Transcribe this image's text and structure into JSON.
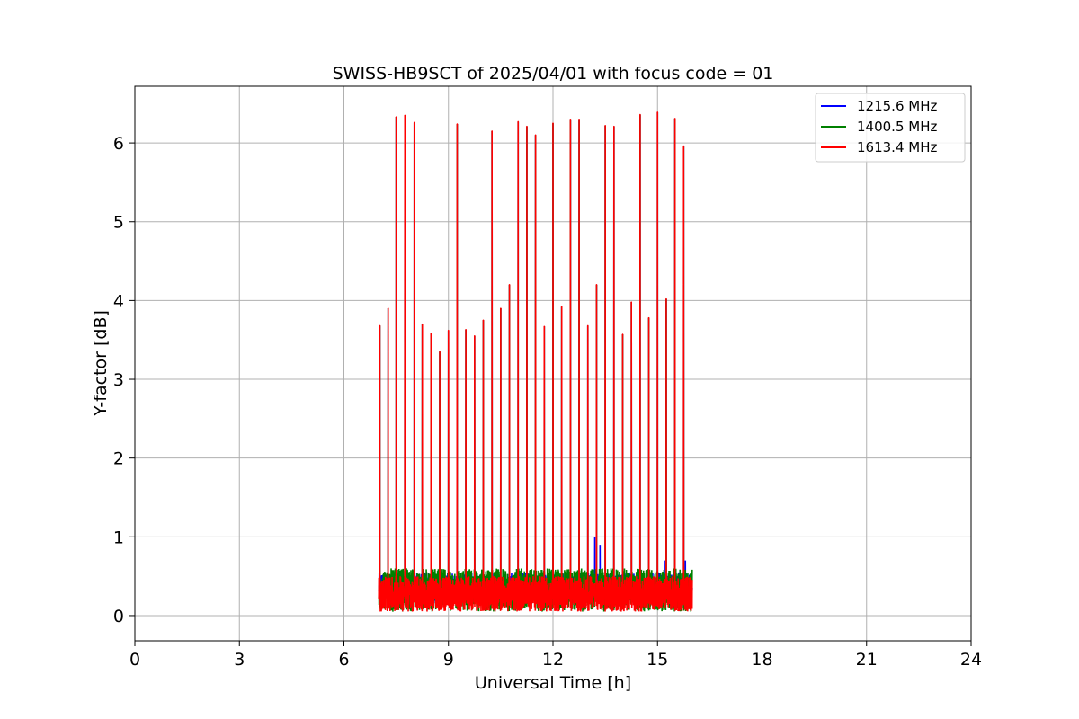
{
  "chart_data": {
    "type": "line",
    "title": "SWISS-HB9SCT of 2025/04/01 with focus code = 01",
    "xlabel": "Universal Time [h]",
    "ylabel": "Y-factor [dB]",
    "xlim": [
      0,
      24
    ],
    "ylim": [
      -0.32,
      6.72
    ],
    "xticks": [
      0,
      3,
      6,
      9,
      12,
      15,
      18,
      21,
      24
    ],
    "yticks": [
      0,
      1,
      2,
      3,
      4,
      5,
      6
    ],
    "grid": true,
    "legend_position": "top-right",
    "data_range_x": [
      7.0,
      16.0
    ],
    "baseline": {
      "blue": [
        0.15,
        0.55
      ],
      "green": [
        0.05,
        0.6
      ],
      "red": [
        0.05,
        0.5
      ]
    },
    "series": [
      {
        "name": "1215.6 MHz",
        "color": "#0000ff"
      },
      {
        "name": "1400.5 MHz",
        "color": "#008000"
      },
      {
        "name": "1613.4 MHz",
        "color": "#ff0000"
      }
    ],
    "peaks": [
      {
        "x": 7.03,
        "y": 3.68
      },
      {
        "x": 7.27,
        "y": 3.9
      },
      {
        "x": 7.5,
        "y": 6.33
      },
      {
        "x": 7.75,
        "y": 6.35
      },
      {
        "x": 8.02,
        "y": 6.26
      },
      {
        "x": 8.25,
        "y": 3.7
      },
      {
        "x": 8.5,
        "y": 3.58
      },
      {
        "x": 8.75,
        "y": 3.35
      },
      {
        "x": 9.0,
        "y": 3.62
      },
      {
        "x": 9.25,
        "y": 6.24
      },
      {
        "x": 9.5,
        "y": 3.63
      },
      {
        "x": 9.75,
        "y": 3.55
      },
      {
        "x": 10.0,
        "y": 3.75
      },
      {
        "x": 10.25,
        "y": 6.15
      },
      {
        "x": 10.5,
        "y": 3.9
      },
      {
        "x": 10.75,
        "y": 4.2
      },
      {
        "x": 11.0,
        "y": 6.27
      },
      {
        "x": 11.25,
        "y": 6.21
      },
      {
        "x": 11.5,
        "y": 6.1
      },
      {
        "x": 11.75,
        "y": 3.67
      },
      {
        "x": 12.0,
        "y": 6.25
      },
      {
        "x": 12.25,
        "y": 3.92
      },
      {
        "x": 12.5,
        "y": 6.3
      },
      {
        "x": 12.75,
        "y": 6.3
      },
      {
        "x": 13.0,
        "y": 3.68
      },
      {
        "x": 13.25,
        "y": 4.2
      },
      {
        "x": 13.5,
        "y": 6.22
      },
      {
        "x": 13.75,
        "y": 6.21
      },
      {
        "x": 14.0,
        "y": 3.57
      },
      {
        "x": 14.25,
        "y": 3.98
      },
      {
        "x": 14.5,
        "y": 6.36
      },
      {
        "x": 14.75,
        "y": 3.78
      },
      {
        "x": 15.0,
        "y": 6.39
      },
      {
        "x": 15.25,
        "y": 4.02
      },
      {
        "x": 15.5,
        "y": 6.31
      },
      {
        "x": 15.75,
        "y": 5.96
      }
    ],
    "blue_bumps": [
      {
        "x": 13.2,
        "y": 1.0
      },
      {
        "x": 13.35,
        "y": 0.9
      },
      {
        "x": 15.2,
        "y": 0.7
      },
      {
        "x": 15.8,
        "y": 0.7
      }
    ]
  }
}
